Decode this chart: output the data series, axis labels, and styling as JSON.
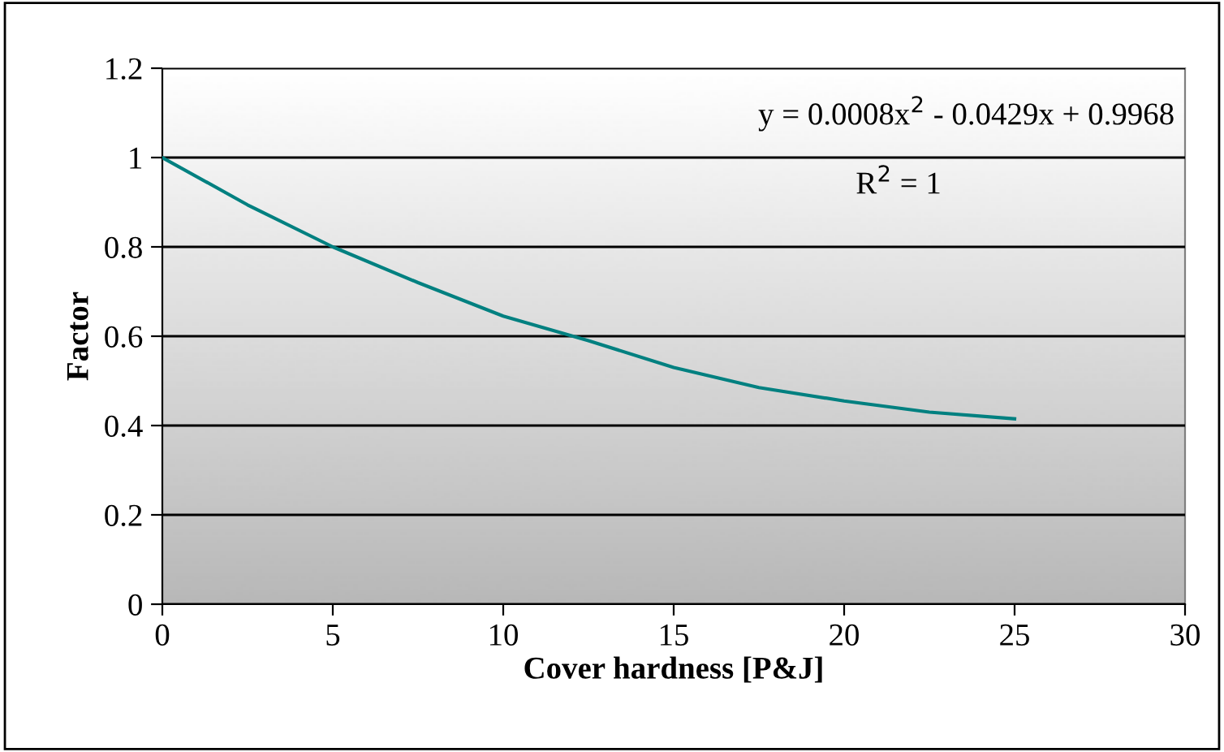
{
  "chart_data": {
    "type": "line",
    "xlabel": "Cover hardness [P&J]",
    "ylabel": "Factor",
    "x": [
      0,
      2.5,
      5,
      7.5,
      10,
      12.5,
      15,
      17.5,
      20,
      22.5,
      25
    ],
    "series": [
      {
        "color": "#008080",
        "values": [
          1.0,
          0.894,
          0.8,
          0.72,
          0.645,
          0.59,
          0.53,
          0.485,
          0.455,
          0.43,
          0.415
        ]
      }
    ],
    "xlim": [
      0,
      30
    ],
    "xticks": [
      0,
      5,
      10,
      15,
      20,
      25,
      30
    ],
    "ylim": [
      0,
      1.2
    ],
    "yticks": [
      0,
      0.2,
      0.4,
      0.6,
      0.8,
      1,
      1.2
    ],
    "grid": "y",
    "marker": "none",
    "line_style": "solid",
    "annotations": [
      "y = 0.0008x$^{2}$ - 0.0429x + 0.9968",
      "R$^{2}$ = 1"
    ]
  }
}
